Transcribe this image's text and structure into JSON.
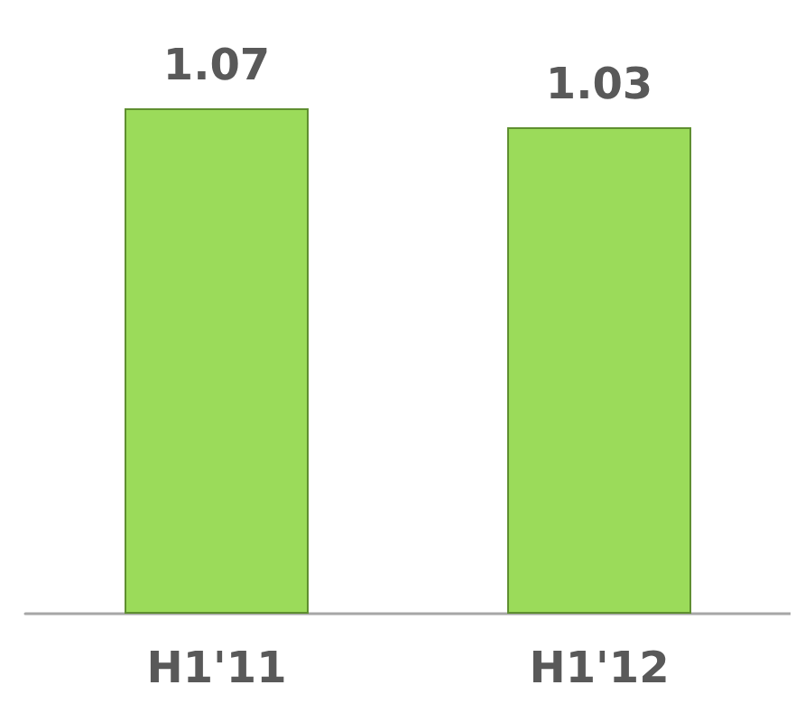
{
  "chart_data": {
    "type": "bar",
    "categories": [
      "H1'11",
      "H1'12"
    ],
    "values": [
      1.07,
      1.03
    ],
    "color": "#9bdb5a",
    "data_labels": true
  }
}
